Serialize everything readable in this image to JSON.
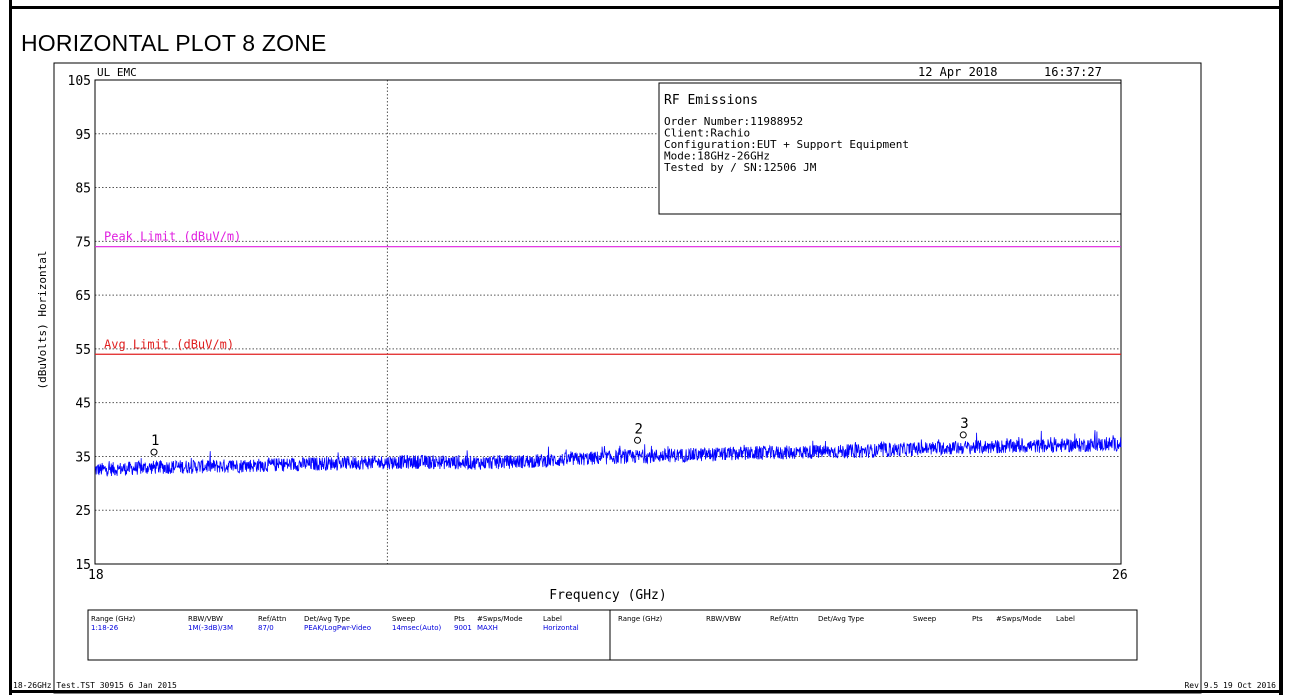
{
  "page_title": "HORIZONTAL PLOT 8 ZONE",
  "header": {
    "org": "UL EMC",
    "date": "12 Apr 2018",
    "time": "16:37:27"
  },
  "info_box": {
    "title": "RF Emissions",
    "lines": [
      "Order Number:11988952",
      "Client:Rachio",
      "Configuration:EUT + Support Equipment",
      "Mode:18GHz-26GHz",
      "Tested by / SN:12506 JM"
    ]
  },
  "chart_data": {
    "type": "line",
    "xlabel": "Frequency (GHz)",
    "ylabel": "(dBuVolts) Horizontal",
    "xlim": [
      18,
      26
    ],
    "ylim": [
      15,
      105
    ],
    "x_tick_labels": [
      "18",
      "26"
    ],
    "y_ticks": [
      105,
      95,
      85,
      75,
      65,
      55,
      45,
      35,
      25,
      15
    ],
    "grid": true,
    "limits": [
      {
        "label": "Peak Limit (dBuV/m)",
        "value": 74,
        "color": "#e020e0"
      },
      {
        "label": "Avg Limit (dBuV/m)",
        "value": 54,
        "color": "#e02020"
      }
    ],
    "series": [
      {
        "color": "#0000ff",
        "x": [
          18.0,
          18.5,
          19.0,
          19.5,
          20.0,
          20.5,
          21.0,
          21.5,
          22.0,
          22.5,
          23.0,
          23.5,
          24.0,
          24.5,
          25.0,
          25.5,
          26.0
        ],
        "y": [
          32.5,
          33.0,
          33.2,
          33.5,
          33.8,
          34.0,
          33.8,
          34.2,
          34.8,
          35.2,
          35.5,
          35.8,
          36.0,
          36.5,
          36.8,
          37.0,
          37.3
        ]
      }
    ],
    "markers": [
      {
        "label": "1",
        "x": 18.46,
        "y": 35.8
      },
      {
        "label": "2",
        "x": 22.23,
        "y": 38.0
      },
      {
        "label": "3",
        "x": 24.77,
        "y": 39.0
      }
    ]
  },
  "settings_table": {
    "headers": [
      "Range (GHz)",
      "RBW/VBW",
      "Ref/Attn",
      "Det/Avg Type",
      "Sweep",
      "Pts",
      "#Swps/Mode",
      "Label"
    ],
    "row": [
      "1:18-26",
      "1M(-3dB)/3M",
      "87/0",
      "PEAK/LogPwr-Video",
      "14msec(Auto)",
      "9001",
      "MAXH",
      "Horizontal"
    ],
    "headers_2": [
      "Range (GHz)",
      "RBW/VBW",
      "Ref/Attn",
      "Det/Avg Type",
      "Sweep",
      "Pts",
      "#Swps/Mode",
      "Label"
    ]
  },
  "footer": {
    "left": "18-26GHz Test.TST 30915  6 Jan 2015",
    "right": "Rev 9.5 19 Oct 2016"
  }
}
